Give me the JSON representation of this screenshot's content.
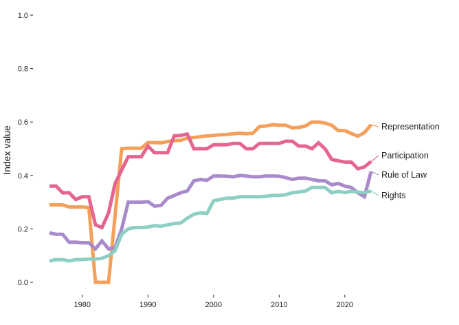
{
  "chart_data": {
    "type": "line",
    "title": "",
    "xlabel": "",
    "ylabel": "Index value",
    "xlim": [
      1974,
      2025
    ],
    "ylim": [
      0,
      1
    ],
    "x_ticks": [
      1980,
      1990,
      2000,
      2010,
      2020
    ],
    "y_ticks": [
      0.0,
      0.2,
      0.4,
      0.6,
      0.8,
      1.0
    ],
    "y_tick_labels": [
      "0.0",
      "0.2",
      "0.4",
      "0.6",
      "0.8",
      "1.0"
    ],
    "grid": false,
    "legend": "direct labels at right end of lines",
    "x": [
      1975,
      1976,
      1977,
      1978,
      1979,
      1980,
      1981,
      1982,
      1983,
      1984,
      1985,
      1986,
      1987,
      1988,
      1989,
      1990,
      1991,
      1992,
      1993,
      1994,
      1995,
      1996,
      1997,
      1998,
      1999,
      2000,
      2001,
      2002,
      2003,
      2004,
      2005,
      2006,
      2007,
      2008,
      2009,
      2010,
      2011,
      2012,
      2013,
      2014,
      2015,
      2016,
      2017,
      2018,
      2019,
      2020,
      2021,
      2022,
      2023,
      2024
    ],
    "series": [
      {
        "name": "Representation",
        "color": "#F5A05A",
        "values": [
          0.29,
          0.29,
          0.29,
          0.282,
          0.282,
          0.282,
          0.28,
          0.0,
          0.0,
          0.0,
          0.25,
          0.5,
          0.502,
          0.502,
          0.502,
          0.523,
          0.523,
          0.522,
          0.527,
          0.53,
          0.532,
          0.54,
          0.542,
          0.545,
          0.548,
          0.55,
          0.552,
          0.553,
          0.556,
          0.558,
          0.556,
          0.558,
          0.583,
          0.585,
          0.59,
          0.588,
          0.588,
          0.578,
          0.58,
          0.585,
          0.6,
          0.6,
          0.596,
          0.588,
          0.568,
          0.568,
          0.557,
          0.547,
          0.56,
          0.59
        ]
      },
      {
        "name": "Participation",
        "color": "#E4658D",
        "values": [
          0.36,
          0.36,
          0.335,
          0.335,
          0.31,
          0.32,
          0.32,
          0.215,
          0.205,
          0.26,
          0.37,
          0.42,
          0.47,
          0.47,
          0.47,
          0.51,
          0.485,
          0.485,
          0.485,
          0.548,
          0.55,
          0.555,
          0.5,
          0.5,
          0.5,
          0.515,
          0.515,
          0.515,
          0.52,
          0.52,
          0.5,
          0.5,
          0.52,
          0.52,
          0.52,
          0.52,
          0.528,
          0.528,
          0.51,
          0.51,
          0.5,
          0.522,
          0.5,
          0.46,
          0.455,
          0.45,
          0.45,
          0.425,
          0.432,
          0.452
        ]
      },
      {
        "name": "Rule of Law",
        "color": "#A98BCB",
        "values": [
          0.185,
          0.18,
          0.18,
          0.15,
          0.15,
          0.148,
          0.148,
          0.125,
          0.155,
          0.125,
          0.13,
          0.2,
          0.3,
          0.3,
          0.3,
          0.302,
          0.285,
          0.288,
          0.315,
          0.325,
          0.335,
          0.342,
          0.38,
          0.385,
          0.382,
          0.398,
          0.398,
          0.397,
          0.395,
          0.4,
          0.398,
          0.395,
          0.395,
          0.398,
          0.398,
          0.397,
          0.392,
          0.385,
          0.39,
          0.39,
          0.385,
          0.38,
          0.38,
          0.365,
          0.37,
          0.36,
          0.355,
          0.335,
          0.32,
          0.415
        ]
      },
      {
        "name": "Rights",
        "color": "#8DCFC2",
        "values": [
          0.08,
          0.085,
          0.085,
          0.08,
          0.085,
          0.085,
          0.087,
          0.087,
          0.09,
          0.1,
          0.118,
          0.18,
          0.2,
          0.205,
          0.205,
          0.207,
          0.212,
          0.21,
          0.215,
          0.22,
          0.222,
          0.24,
          0.255,
          0.26,
          0.258,
          0.305,
          0.31,
          0.315,
          0.315,
          0.32,
          0.32,
          0.32,
          0.32,
          0.322,
          0.325,
          0.325,
          0.328,
          0.335,
          0.338,
          0.342,
          0.355,
          0.355,
          0.355,
          0.335,
          0.34,
          0.336,
          0.34,
          0.338,
          0.335,
          0.342
        ]
      }
    ]
  }
}
